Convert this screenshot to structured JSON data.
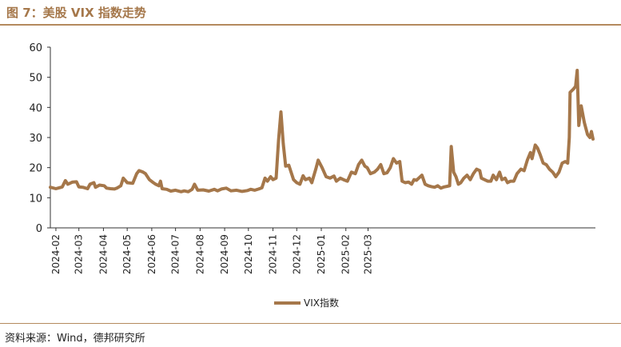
{
  "figure": {
    "title": "图 7：美股 VIX 指数走势",
    "source": "资料来源：Wind，德邦研究所"
  },
  "colors": {
    "line": "#a5774a",
    "accent": "#b48a5e",
    "axis": "#333333"
  },
  "chart_data": {
    "type": "line",
    "title": "",
    "xlabel": "",
    "ylabel": "",
    "ylim": [
      0,
      60
    ],
    "yticks": [
      0,
      10,
      20,
      30,
      40,
      50,
      60
    ],
    "xticks": [
      "2024-02",
      "2024-03",
      "2024-04",
      "2024-05",
      "2024-06",
      "2024-07",
      "2024-08",
      "2024-09",
      "2024-10",
      "2024-11",
      "2024-12",
      "2025-01",
      "2025-02",
      "2025-03"
    ],
    "grid": false,
    "legend": "bottom-center",
    "series": [
      {
        "name": "VIX指数",
        "points": [
          [
            "2024-01-25",
            13.5
          ],
          [
            "2024-02-01",
            13.0
          ],
          [
            "2024-02-05",
            13.3
          ],
          [
            "2024-02-09",
            13.6
          ],
          [
            "2024-02-13",
            15.7
          ],
          [
            "2024-02-16",
            14.5
          ],
          [
            "2024-02-22",
            15.2
          ],
          [
            "2024-02-27",
            15.3
          ],
          [
            "2024-03-01",
            13.6
          ],
          [
            "2024-03-06",
            13.5
          ],
          [
            "2024-03-12",
            13.0
          ],
          [
            "2024-03-15",
            14.5
          ],
          [
            "2024-03-20",
            15.0
          ],
          [
            "2024-03-22",
            13.5
          ],
          [
            "2024-03-27",
            14.2
          ],
          [
            "2024-04-02",
            14.0
          ],
          [
            "2024-04-05",
            13.2
          ],
          [
            "2024-04-10",
            13.0
          ],
          [
            "2024-04-15",
            12.9
          ],
          [
            "2024-04-18",
            13.2
          ],
          [
            "2024-04-23",
            14.0
          ],
          [
            "2024-04-26",
            16.5
          ],
          [
            "2024-05-01",
            15.0
          ],
          [
            "2024-05-08",
            14.8
          ],
          [
            "2024-05-13",
            18.0
          ],
          [
            "2024-05-16",
            19.0
          ],
          [
            "2024-05-21",
            18.5
          ],
          [
            "2024-05-24",
            18.0
          ],
          [
            "2024-05-29",
            16.0
          ],
          [
            "2024-06-03",
            15.0
          ],
          [
            "2024-06-06",
            14.5
          ],
          [
            "2024-06-10",
            14.0
          ],
          [
            "2024-06-12",
            15.5
          ],
          [
            "2024-06-14",
            13.0
          ],
          [
            "2024-06-20",
            12.8
          ],
          [
            "2024-06-25",
            12.2
          ],
          [
            "2024-07-01",
            12.5
          ],
          [
            "2024-07-08",
            12.0
          ],
          [
            "2024-07-12",
            12.3
          ],
          [
            "2024-07-17",
            12.0
          ],
          [
            "2024-07-22",
            12.8
          ],
          [
            "2024-07-25",
            14.5
          ],
          [
            "2024-07-29",
            12.5
          ],
          [
            "2024-08-05",
            12.6
          ],
          [
            "2024-08-12",
            12.2
          ],
          [
            "2024-08-19",
            12.8
          ],
          [
            "2024-08-23",
            12.3
          ],
          [
            "2024-08-28",
            12.9
          ],
          [
            "2024-09-03",
            13.2
          ],
          [
            "2024-09-09",
            12.3
          ],
          [
            "2024-09-16",
            12.5
          ],
          [
            "2024-09-23",
            12.1
          ],
          [
            "2024-09-30",
            12.4
          ],
          [
            "2024-10-04",
            12.8
          ],
          [
            "2024-10-09",
            12.5
          ],
          [
            "2024-10-14",
            12.9
          ],
          [
            "2024-10-18",
            13.3
          ],
          [
            "2024-10-22",
            16.5
          ],
          [
            "2024-10-25",
            15.5
          ],
          [
            "2024-10-29",
            17.0
          ],
          [
            "2024-11-01",
            16.0
          ],
          [
            "2024-11-05",
            16.5
          ],
          [
            "2024-11-08",
            29.0
          ],
          [
            "2024-11-11",
            38.5
          ],
          [
            "2024-11-14",
            28.0
          ],
          [
            "2024-11-17",
            20.5
          ],
          [
            "2024-11-21",
            20.8
          ],
          [
            "2024-11-27",
            16.0
          ],
          [
            "2024-12-01",
            15.0
          ],
          [
            "2024-12-05",
            14.5
          ],
          [
            "2024-12-09",
            17.3
          ],
          [
            "2024-12-12",
            16.0
          ],
          [
            "2024-12-17",
            16.5
          ],
          [
            "2024-12-20",
            15.0
          ],
          [
            "2024-12-25",
            19.5
          ],
          [
            "2024-12-28",
            22.5
          ],
          [
            "2025-01-02",
            20.0
          ],
          [
            "2025-01-07",
            17.0
          ],
          [
            "2025-01-12",
            16.5
          ],
          [
            "2025-01-17",
            17.2
          ],
          [
            "2025-01-20",
            15.5
          ],
          [
            "2025-01-25",
            16.5
          ],
          [
            "2025-01-29",
            16.0
          ],
          [
            "2025-02-03",
            15.5
          ],
          [
            "2025-02-08",
            18.5
          ],
          [
            "2025-02-13",
            18.0
          ],
          [
            "2025-02-17",
            21.0
          ],
          [
            "2025-02-21",
            22.5
          ],
          [
            "2025-02-25",
            20.5
          ],
          [
            "2025-02-28",
            20.0
          ],
          [
            "2025-03-04",
            18.0
          ],
          [
            "2025-03-09",
            18.5
          ],
          [
            "2025-03-13",
            19.5
          ],
          [
            "2025-03-17",
            21.0
          ],
          [
            "2025-03-21",
            18.0
          ],
          [
            "2025-03-25",
            18.3
          ],
          [
            "2025-03-29",
            20.0
          ],
          [
            "2025-04-02",
            23.0
          ],
          [
            "2025-04-06",
            21.5
          ],
          [
            "2025-04-10",
            22.0
          ],
          [
            "2025-04-13",
            15.5
          ],
          [
            "2025-04-17",
            15.0
          ],
          [
            "2025-04-21",
            15.2
          ],
          [
            "2025-04-25",
            14.5
          ],
          [
            "2025-04-28",
            16.0
          ],
          [
            "2025-05-01",
            15.8
          ],
          [
            "2025-05-04",
            16.5
          ],
          [
            "2025-05-08",
            17.5
          ],
          [
            "2025-05-12",
            14.5
          ],
          [
            "2025-05-16",
            14.0
          ],
          [
            "2025-05-20",
            13.7
          ],
          [
            "2025-05-24",
            13.5
          ],
          [
            "2025-05-28",
            14.0
          ],
          [
            "2025-06-01",
            13.2
          ],
          [
            "2025-06-05",
            13.6
          ],
          [
            "2025-06-09",
            13.8
          ],
          [
            "2025-06-12",
            14.0
          ],
          [
            "2025-06-14",
            27.0
          ],
          [
            "2025-06-17",
            18.5
          ],
          [
            "2025-06-20",
            17.0
          ],
          [
            "2025-06-23",
            14.5
          ],
          [
            "2025-06-26",
            15.0
          ],
          [
            "2025-06-30",
            16.5
          ],
          [
            "2025-07-04",
            17.5
          ],
          [
            "2025-07-08",
            16.0
          ],
          [
            "2025-07-12",
            18.0
          ],
          [
            "2025-07-16",
            19.5
          ],
          [
            "2025-07-20",
            19.0
          ],
          [
            "2025-07-22",
            16.5
          ],
          [
            "2025-07-26",
            16.0
          ],
          [
            "2025-07-30",
            15.5
          ],
          [
            "2025-08-03",
            15.5
          ],
          [
            "2025-08-06",
            17.5
          ],
          [
            "2025-08-10",
            16.0
          ],
          [
            "2025-08-14",
            18.5
          ],
          [
            "2025-08-17",
            16.0
          ],
          [
            "2025-08-21",
            16.5
          ],
          [
            "2025-08-24",
            15.0
          ],
          [
            "2025-08-28",
            15.5
          ],
          [
            "2025-09-01",
            15.5
          ],
          [
            "2025-09-05",
            18.0
          ],
          [
            "2025-09-10",
            19.5
          ],
          [
            "2025-09-14",
            19.0
          ],
          [
            "2025-09-18",
            22.5
          ],
          [
            "2025-09-22",
            25.0
          ],
          [
            "2025-09-24",
            23.0
          ],
          [
            "2025-09-28",
            27.5
          ],
          [
            "2025-10-01",
            26.5
          ],
          [
            "2025-10-04",
            24.5
          ],
          [
            "2025-10-08",
            21.5
          ],
          [
            "2025-10-12",
            21.0
          ],
          [
            "2025-10-16",
            19.5
          ],
          [
            "2025-10-20",
            18.5
          ],
          [
            "2025-10-24",
            17.0
          ],
          [
            "2025-10-28",
            18.5
          ],
          [
            "2025-11-01",
            21.5
          ],
          [
            "2025-11-05",
            22.0
          ],
          [
            "2025-11-08",
            21.5
          ],
          [
            "2025-11-10",
            30.0
          ],
          [
            "2025-11-11",
            45.0
          ],
          [
            "2025-11-15",
            46.0
          ],
          [
            "2025-11-18",
            47.0
          ],
          [
            "2025-11-20",
            52.3
          ],
          [
            "2025-11-22",
            34.0
          ],
          [
            "2025-11-25",
            40.5
          ],
          [
            "2025-11-29",
            35.0
          ],
          [
            "2025-12-03",
            31.0
          ],
          [
            "2025-12-06",
            30.0
          ],
          [
            "2025-12-08",
            32.0
          ],
          [
            "2025-12-10",
            29.5
          ]
        ]
      }
    ]
  }
}
